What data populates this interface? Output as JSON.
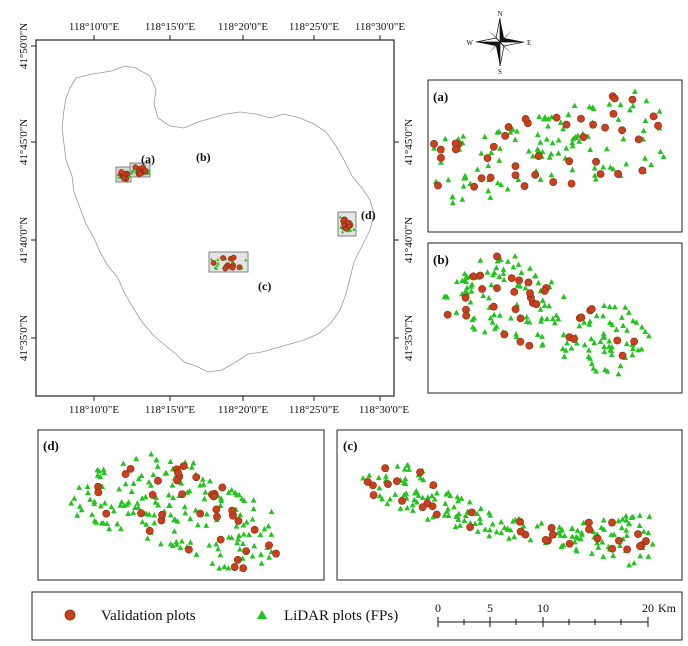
{
  "main_map": {
    "top_ticks": [
      "118°10'0\"E",
      "118°15'0\"E",
      "118°20'0\"E",
      "118°25'0\"E",
      "118°30'0\"E"
    ],
    "bottom_ticks": [
      "118°10'0\"E",
      "118°15'0\"E",
      "118°20'0\"E",
      "118°25'0\"E",
      "118°30'0\"E"
    ],
    "left_ticks": [
      "41°50'0\"N",
      "41°45'0\"N",
      "41°40'0\"N",
      "41°35'0\"N"
    ],
    "right_ticks": [
      "41°45'0\"N",
      "41°40'0\"N",
      "41°35'0\"N"
    ],
    "area_labels": {
      "a": "(a)",
      "b": "(b)",
      "c": "(c)",
      "d": "(d)"
    }
  },
  "compass": {
    "n": "N",
    "s": "S",
    "e": "E",
    "w": "W"
  },
  "insets": {
    "a": {
      "label": "(a)"
    },
    "b": {
      "label": "(b)"
    },
    "c": {
      "label": "(c)"
    },
    "d": {
      "label": "(d)"
    }
  },
  "legend": {
    "validation_label": "Validation plots",
    "lidar_label": "LiDAR plots (FPs)",
    "scale_ticks": [
      "0",
      "5",
      "10",
      "20"
    ],
    "scale_unit": "Km"
  },
  "colors": {
    "validation_fill": "#c8401e",
    "validation_stroke": "#8a2a10",
    "lidar": "#22c41e",
    "boundary": "#9a9a9a"
  }
}
